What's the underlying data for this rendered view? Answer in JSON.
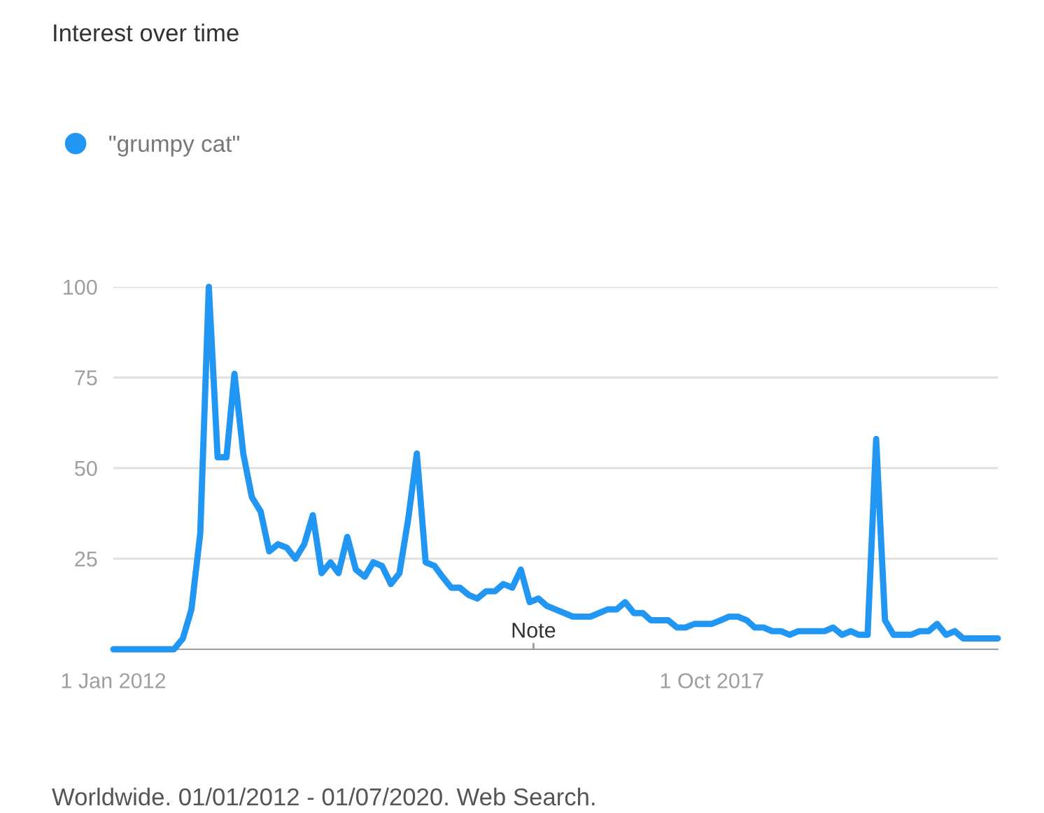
{
  "chart_data": {
    "type": "line",
    "title": "Interest over time",
    "x": [
      "2012-01",
      "2012-02",
      "2012-03",
      "2012-04",
      "2012-05",
      "2012-06",
      "2012-07",
      "2012-08",
      "2012-09",
      "2012-10",
      "2012-11",
      "2012-12",
      "2013-01",
      "2013-02",
      "2013-03",
      "2013-04",
      "2013-05",
      "2013-06",
      "2013-07",
      "2013-08",
      "2013-09",
      "2013-10",
      "2013-11",
      "2013-12",
      "2014-01",
      "2014-02",
      "2014-03",
      "2014-04",
      "2014-05",
      "2014-06",
      "2014-07",
      "2014-08",
      "2014-09",
      "2014-10",
      "2014-11",
      "2014-12",
      "2015-01",
      "2015-02",
      "2015-03",
      "2015-04",
      "2015-05",
      "2015-06",
      "2015-07",
      "2015-08",
      "2015-09",
      "2015-10",
      "2015-11",
      "2015-12",
      "2016-01",
      "2016-02",
      "2016-03",
      "2016-04",
      "2016-05",
      "2016-06",
      "2016-07",
      "2016-08",
      "2016-09",
      "2016-10",
      "2016-11",
      "2016-12",
      "2017-01",
      "2017-02",
      "2017-03",
      "2017-04",
      "2017-05",
      "2017-06",
      "2017-07",
      "2017-08",
      "2017-09",
      "2017-10",
      "2017-11",
      "2017-12",
      "2018-01",
      "2018-02",
      "2018-03",
      "2018-04",
      "2018-05",
      "2018-06",
      "2018-07",
      "2018-08",
      "2018-09",
      "2018-10",
      "2018-11",
      "2018-12",
      "2019-01",
      "2019-02",
      "2019-03",
      "2019-04",
      "2019-05",
      "2019-06",
      "2019-07",
      "2019-08",
      "2019-09",
      "2019-10",
      "2019-11",
      "2019-12",
      "2020-01",
      "2020-02",
      "2020-03",
      "2020-04",
      "2020-05",
      "2020-06",
      "2020-07"
    ],
    "series": [
      {
        "name": "\"grumpy cat\"",
        "color": "#2196f3",
        "values": [
          0,
          0,
          0,
          0,
          0,
          0,
          0,
          0,
          3,
          11,
          32,
          100,
          53,
          53,
          76,
          54,
          42,
          38,
          27,
          29,
          28,
          25,
          29,
          37,
          21,
          24,
          21,
          31,
          22,
          20,
          24,
          23,
          18,
          21,
          36,
          54,
          24,
          23,
          20,
          17,
          17,
          15,
          14,
          16,
          16,
          18,
          17,
          22,
          13,
          14,
          12,
          11,
          10,
          9,
          9,
          9,
          10,
          11,
          11,
          13,
          10,
          10,
          8,
          8,
          8,
          6,
          6,
          7,
          7,
          7,
          8,
          9,
          9,
          8,
          6,
          6,
          5,
          5,
          4,
          5,
          5,
          5,
          5,
          6,
          4,
          5,
          4,
          4,
          58,
          8,
          4,
          4,
          4,
          5,
          5,
          7,
          4,
          5,
          3,
          3,
          3,
          3,
          3
        ]
      }
    ],
    "xlim": [
      "2012-01",
      "2020-07"
    ],
    "xticks": [
      {
        "value": "2012-01-01",
        "label": "1 Jan 2012"
      },
      {
        "value": "2017-10-01",
        "label": "1 Oct 2017"
      }
    ],
    "ylim": [
      0,
      100
    ],
    "yticks": [
      25,
      50,
      75,
      100
    ],
    "grid": "y",
    "legend": "top left",
    "marker": "none",
    "line_style": "solid",
    "annotations": [
      "Note",
      "Worldwide. 01/01/2012 - 01/07/2020. Web Search."
    ]
  }
}
